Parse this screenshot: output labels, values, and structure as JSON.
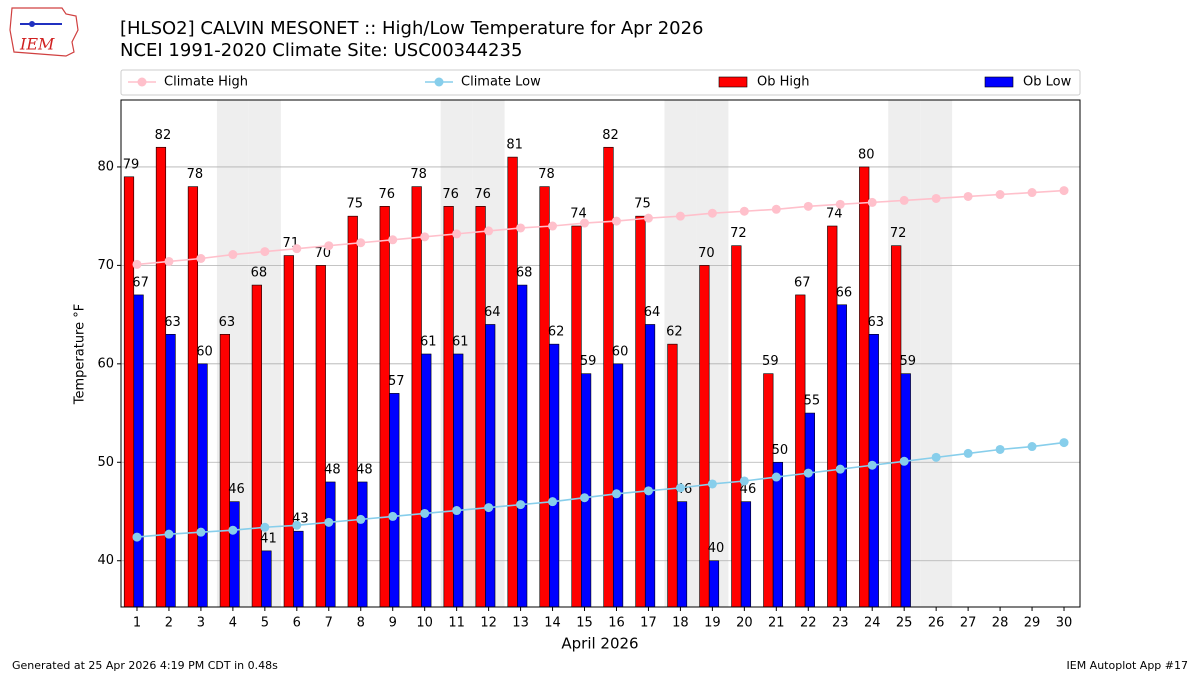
{
  "chart_data": {
    "type": "bar",
    "title": "[HLSO2] CALVIN MESONET :: High/Low Temperature for Apr 2026",
    "subtitle": "NCEI 1991-2020 Climate Site: USC00344235",
    "xlabel": "April 2026",
    "ylabel": "Temperature °F",
    "x": [
      1,
      2,
      3,
      4,
      5,
      6,
      7,
      8,
      9,
      10,
      11,
      12,
      13,
      14,
      15,
      16,
      17,
      18,
      19,
      20,
      21,
      22,
      23,
      24,
      25,
      26,
      27,
      28,
      29,
      30
    ],
    "xlim": [
      0.5,
      30.5
    ],
    "xticks": [
      1,
      2,
      3,
      4,
      5,
      6,
      7,
      8,
      9,
      10,
      11,
      12,
      13,
      14,
      15,
      16,
      17,
      18,
      19,
      20,
      21,
      22,
      23,
      24,
      25,
      26,
      27,
      28,
      29,
      30
    ],
    "ylim": [
      35.3,
      86.8
    ],
    "yticks": [
      40,
      50,
      60,
      70,
      80
    ],
    "grid": true,
    "shaded_days": [
      4,
      5,
      11,
      12,
      18,
      19,
      25,
      26
    ],
    "series": [
      {
        "name": "Climate High",
        "type": "line",
        "color": "#ffc0cb",
        "values": [
          70.1,
          70.4,
          70.7,
          71.1,
          71.4,
          71.7,
          72.0,
          72.3,
          72.6,
          72.9,
          73.2,
          73.5,
          73.8,
          74.0,
          74.3,
          74.5,
          74.8,
          75.0,
          75.3,
          75.5,
          75.7,
          76.0,
          76.2,
          76.4,
          76.6,
          76.8,
          77.0,
          77.2,
          77.4,
          77.6
        ]
      },
      {
        "name": "Climate Low",
        "type": "line",
        "color": "#87ceeb",
        "values": [
          42.4,
          42.7,
          42.9,
          43.1,
          43.4,
          43.6,
          43.9,
          44.2,
          44.5,
          44.8,
          45.1,
          45.4,
          45.7,
          46.0,
          46.4,
          46.8,
          47.1,
          47.4,
          47.8,
          48.1,
          48.5,
          48.9,
          49.3,
          49.7,
          50.1,
          50.5,
          50.9,
          51.3,
          51.6,
          52.0
        ]
      },
      {
        "name": "Ob High",
        "type": "bar",
        "color": "#ff0000",
        "values": [
          79,
          82,
          78,
          63,
          68,
          71,
          70,
          75,
          76,
          78,
          76,
          76,
          81,
          78,
          74,
          82,
          75,
          62,
          70,
          72,
          59,
          67,
          74,
          80,
          72,
          null,
          null,
          null,
          null,
          null
        ]
      },
      {
        "name": "Ob Low",
        "type": "bar",
        "color": "#0000ff",
        "values": [
          67,
          63,
          60,
          46,
          41,
          43,
          48,
          48,
          57,
          61,
          61,
          64,
          68,
          62,
          59,
          60,
          64,
          46,
          40,
          46,
          50,
          55,
          66,
          63,
          59,
          null,
          null,
          null,
          null,
          null
        ]
      }
    ],
    "logo": "IEM",
    "footer_left": "Generated at 25 Apr 2026 4:19 PM CDT in 0.48s",
    "footer_right": "IEM Autoplot App #17"
  }
}
